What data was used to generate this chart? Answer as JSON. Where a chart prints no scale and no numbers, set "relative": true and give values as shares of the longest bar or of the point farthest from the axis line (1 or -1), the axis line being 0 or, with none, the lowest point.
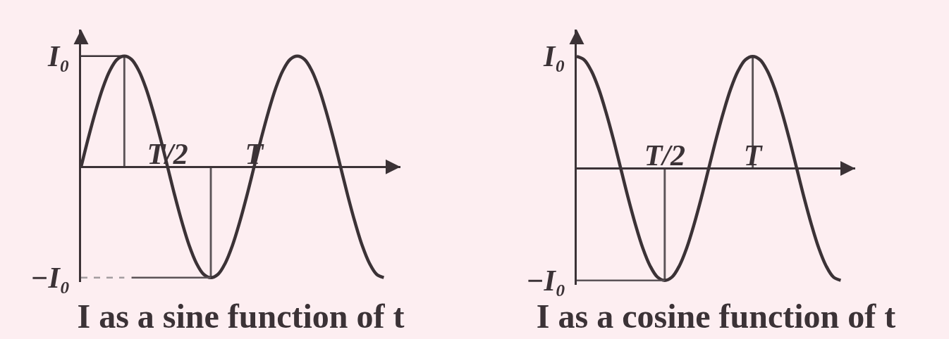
{
  "chart_data": [
    {
      "type": "line",
      "title": "I as a sine function of t",
      "relative": true,
      "categories": [
        null,
        null,
        null,
        null,
        null,
        null,
        null,
        null,
        null,
        null,
        null,
        null,
        "T/2",
        null,
        null,
        null,
        null,
        null,
        null,
        null,
        null,
        null,
        null,
        null,
        "T",
        null,
        null,
        null,
        null,
        null,
        null,
        null,
        null,
        null,
        null,
        null,
        null,
        null,
        null,
        null,
        null,
        null,
        null
      ],
      "series": [
        {
          "color": "#3b3236",
          "values": [
            0,
            0.26,
            0.5,
            0.71,
            0.87,
            0.97,
            1,
            0.97,
            0.87,
            0.71,
            0.5,
            0.26,
            0,
            -0.26,
            -0.5,
            -0.71,
            -0.87,
            -0.97,
            -1,
            -0.97,
            -0.87,
            -0.71,
            -0.5,
            -0.26,
            0,
            0.26,
            0.5,
            0.71,
            0.87,
            0.97,
            1,
            0.97,
            0.87,
            0.71,
            0.5,
            0.26,
            0,
            -0.26,
            -0.5,
            -0.71,
            -0.87,
            -0.97,
            -1
          ]
        },
        {
          "type": "line",
          "color": "#3b3236",
          "values": [
            1,
            1,
            1,
            1,
            1,
            1,
            1,
            null,
            null,
            null,
            null,
            null,
            null,
            null,
            null,
            null,
            null,
            null,
            null,
            null,
            null,
            null,
            null,
            null,
            null,
            null,
            null,
            null,
            null,
            null,
            null,
            null,
            null,
            null,
            null,
            null,
            null,
            null,
            null,
            null,
            null,
            null,
            null
          ]
        },
        {
          "type": "bar",
          "color": "#5b5357",
          "values": [
            null,
            null,
            null,
            null,
            null,
            null,
            1,
            null,
            null,
            null,
            null,
            null,
            null,
            null,
            null,
            null,
            null,
            null,
            -1,
            null,
            null,
            null,
            null,
            null,
            null,
            null,
            null,
            null,
            null,
            null,
            null,
            null,
            null,
            null,
            null,
            null,
            null,
            null,
            null,
            null,
            null,
            null,
            null
          ]
        },
        {
          "type": "line",
          "color": "#a39c9f",
          "line_style": "dashed",
          "values": [
            -1,
            -1,
            -1,
            -1,
            -1,
            -1,
            -1,
            null,
            null,
            null,
            null,
            null,
            null,
            null,
            null,
            null,
            null,
            null,
            null,
            null,
            null,
            null,
            null,
            null,
            null,
            null,
            null,
            null,
            null,
            null,
            null,
            null,
            null,
            null,
            null,
            null,
            null,
            null,
            null,
            null,
            null,
            null,
            null
          ]
        },
        {
          "type": "line",
          "color": "#5b5357",
          "values": [
            null,
            null,
            null,
            null,
            null,
            null,
            null,
            -1,
            -1,
            -1,
            -1,
            -1,
            -1,
            -1,
            -1,
            -1,
            -1,
            -1,
            -1,
            null,
            null,
            null,
            null,
            null,
            null,
            null,
            null,
            null,
            null,
            null,
            null,
            null,
            null,
            null,
            null,
            null,
            null,
            null,
            null,
            null,
            null,
            null,
            null
          ]
        }
      ],
      "annotations": [
        "I₀",
        "−I₀"
      ]
    },
    {
      "type": "line",
      "title": "I as a cosine function of t",
      "relative": true,
      "categories": [
        null,
        null,
        null,
        null,
        null,
        null,
        null,
        null,
        null,
        null,
        null,
        null,
        "T/2",
        null,
        null,
        null,
        null,
        null,
        null,
        null,
        null,
        null,
        null,
        null,
        "T",
        null,
        null,
        null,
        null,
        null,
        null,
        null,
        null,
        null,
        null,
        null,
        null
      ],
      "series": [
        {
          "color": "#3b3236",
          "values": [
            1,
            0.97,
            0.87,
            0.71,
            0.5,
            0.26,
            0,
            -0.26,
            -0.5,
            -0.71,
            -0.87,
            -0.97,
            -1,
            -0.97,
            -0.87,
            -0.71,
            -0.5,
            -0.26,
            0,
            0.26,
            0.5,
            0.71,
            0.87,
            0.97,
            1,
            0.97,
            0.87,
            0.71,
            0.5,
            0.26,
            0,
            -0.26,
            -0.5,
            -0.71,
            -0.87,
            -0.97,
            -1
          ]
        },
        {
          "type": "bar",
          "color": "#5b5357",
          "values": [
            null,
            null,
            null,
            null,
            null,
            null,
            null,
            null,
            null,
            null,
            null,
            null,
            -1,
            null,
            null,
            null,
            null,
            null,
            null,
            null,
            null,
            null,
            null,
            null,
            1,
            null,
            null,
            null,
            null,
            null,
            null,
            null,
            null,
            null,
            null,
            null,
            null
          ]
        },
        {
          "type": "line",
          "color": "#5b5357",
          "values": [
            -1,
            -1,
            -1,
            -1,
            -1,
            -1,
            -1,
            -1,
            -1,
            -1,
            -1,
            -1,
            -1,
            null,
            null,
            null,
            null,
            null,
            null,
            null,
            null,
            null,
            null,
            null,
            null,
            null,
            null,
            null,
            null,
            null,
            null,
            null,
            null,
            null,
            null,
            null,
            null
          ]
        }
      ],
      "annotations": [
        "I₀",
        "−I₀"
      ]
    }
  ]
}
